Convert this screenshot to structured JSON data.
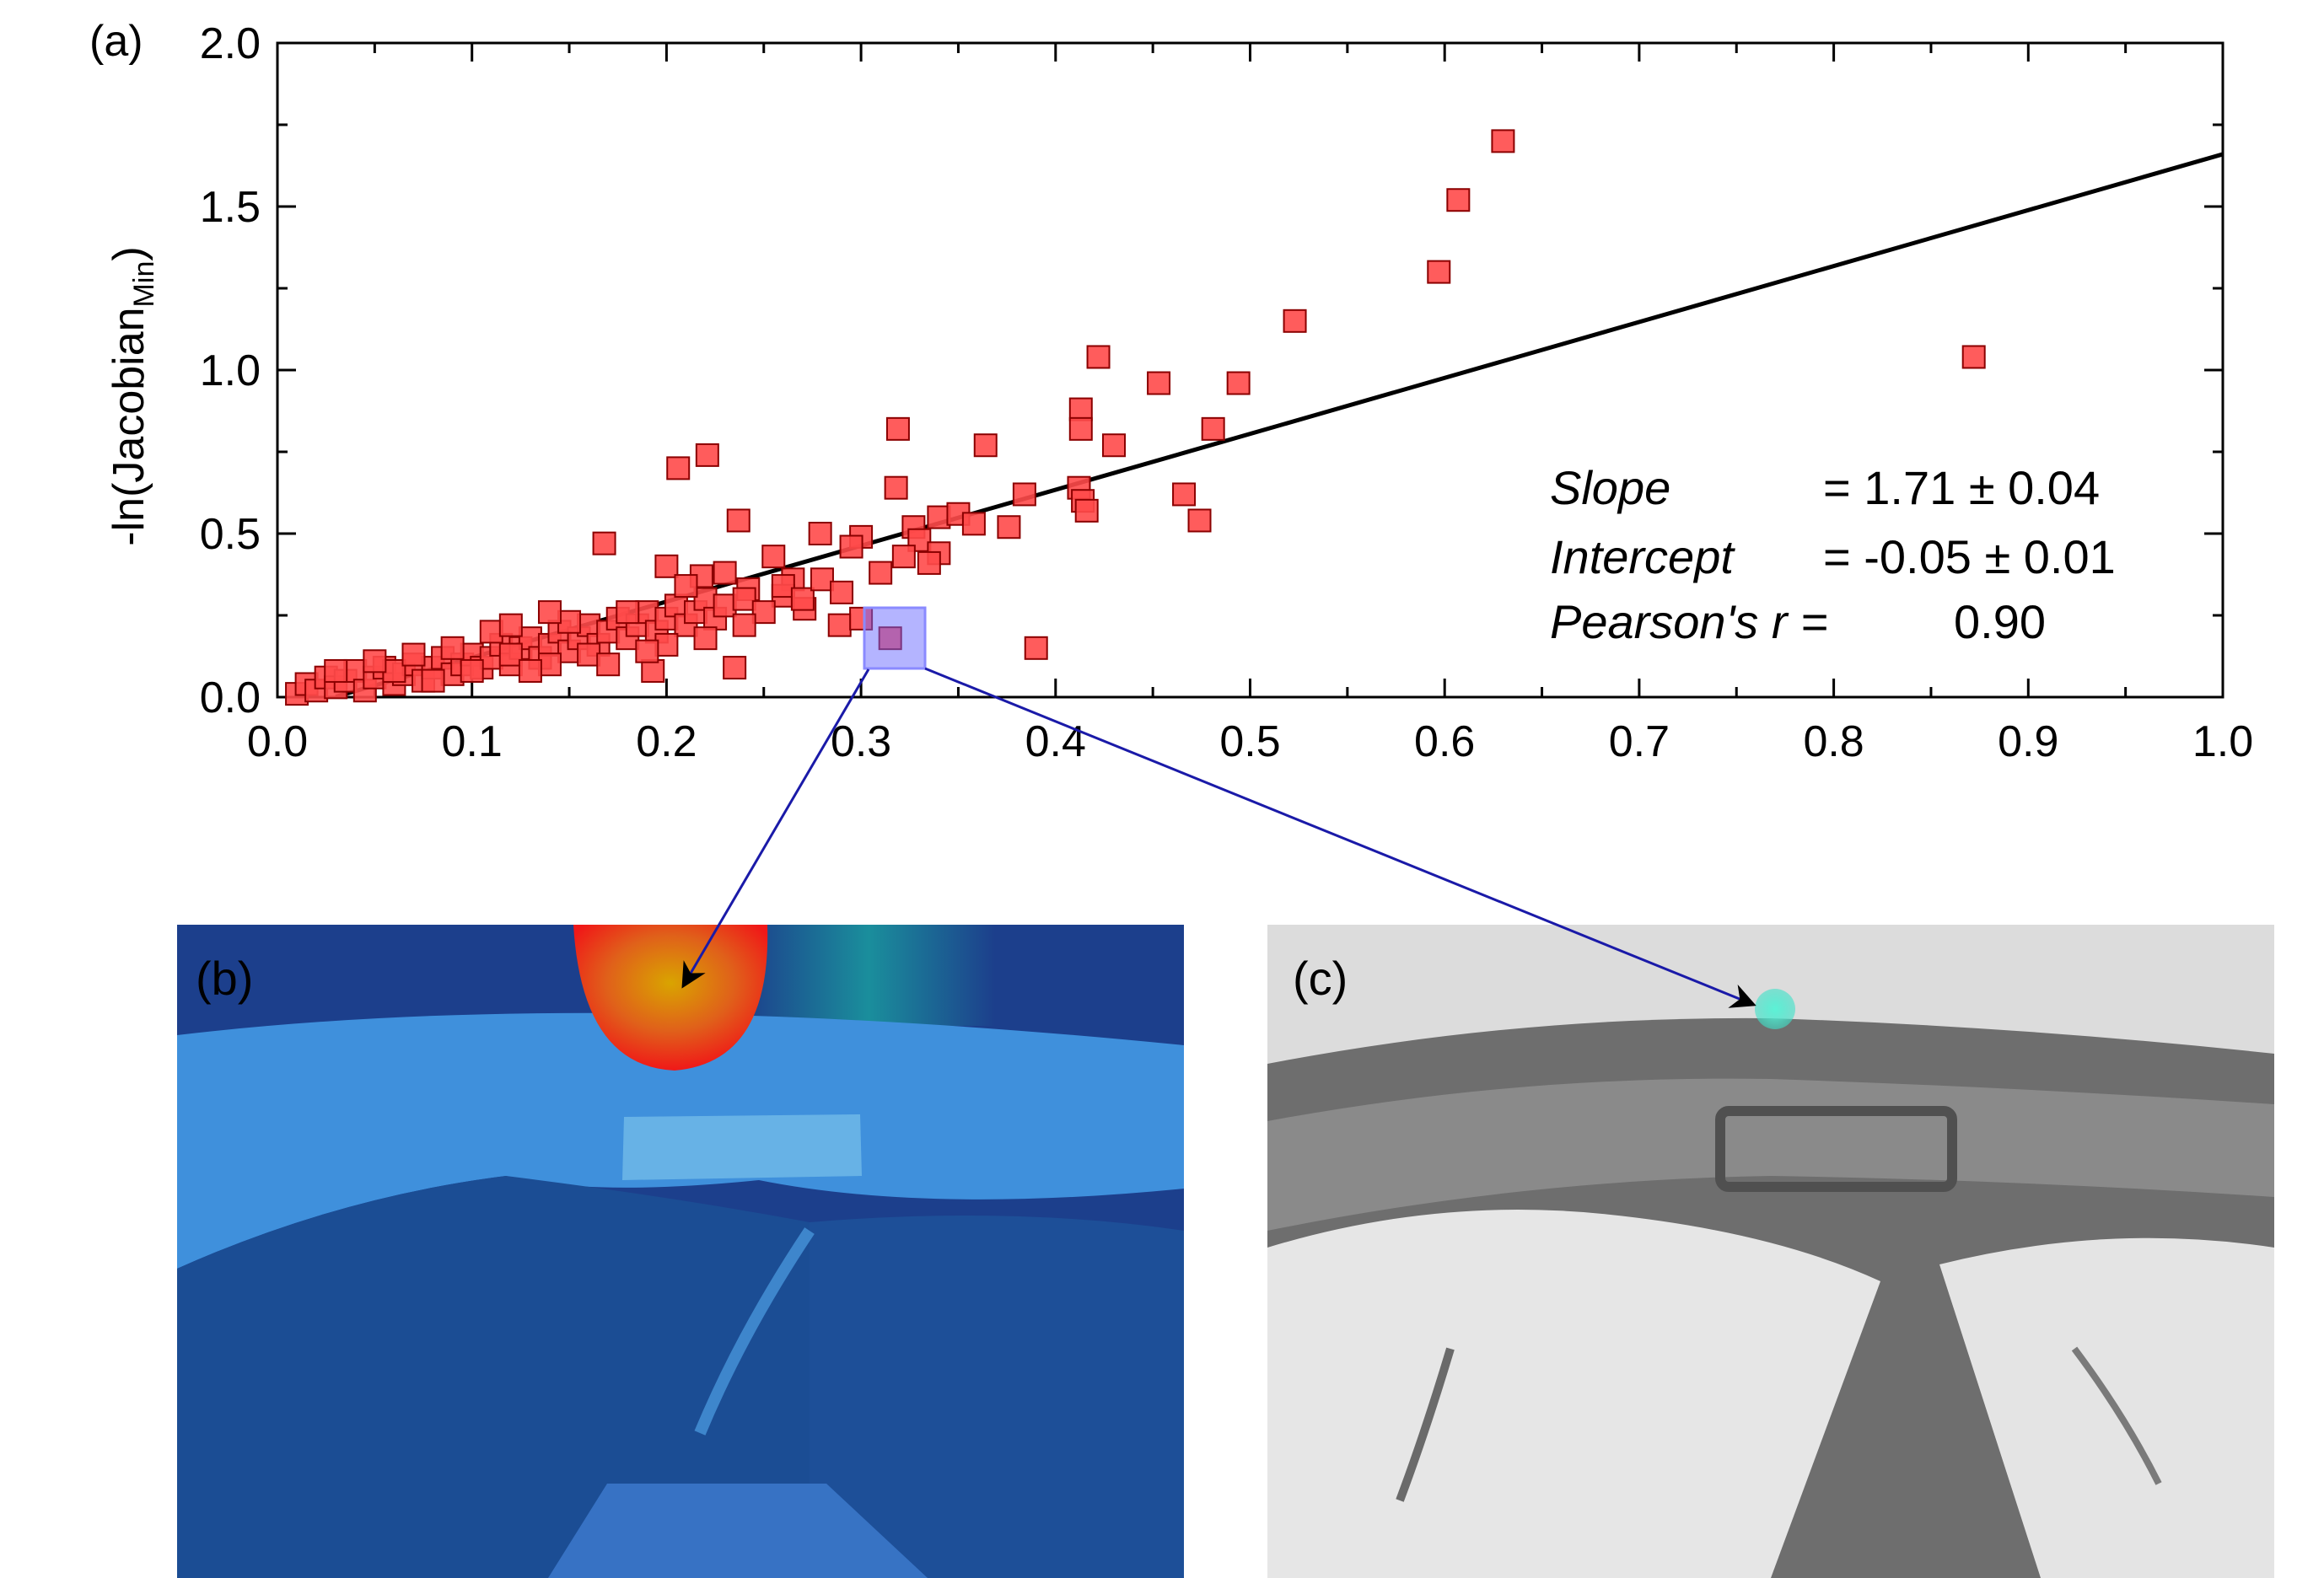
{
  "panels": {
    "a": "(a)",
    "b": "(b)",
    "c": "(c)"
  },
  "chart_data": {
    "type": "scatter",
    "title": "",
    "xlabel": "",
    "ylabel_main": "-ln(Jacobian",
    "ylabel_sub": "Min",
    "ylabel_close": ")",
    "xlim": [
      0.0,
      1.0
    ],
    "ylim": [
      0.0,
      2.0
    ],
    "x_ticks": [
      "0.0",
      "0.1",
      "0.2",
      "0.3",
      "0.4",
      "0.5",
      "0.6",
      "0.7",
      "0.8",
      "0.9",
      "1.0"
    ],
    "y_ticks": [
      "0.0",
      "0.5",
      "1.0",
      "1.5",
      "2.0"
    ],
    "grid": false,
    "marker_color": "#ff4a4a",
    "marker_edge": "#8b0000",
    "fit_line": {
      "slope": 1.71,
      "intercept": -0.05,
      "x_range": [
        0.03,
        1.0
      ]
    },
    "annotations": {
      "slope_label": "Slope",
      "slope_value": "=  1.71 ± 0.04",
      "intercept_label": "Intercept",
      "intercept_value": "= -0.05 ± 0.01",
      "pearson_label": "Pearson's r =",
      "pearson_value": "0.90"
    },
    "highlighted_point": {
      "x": 0.315,
      "y": 0.18
    },
    "points": [
      [
        0.63,
        1.7
      ],
      [
        0.607,
        1.52
      ],
      [
        0.597,
        1.3
      ],
      [
        0.523,
        1.15
      ],
      [
        0.872,
        1.04
      ],
      [
        0.422,
        1.04
      ],
      [
        0.453,
        0.96
      ],
      [
        0.494,
        0.96
      ],
      [
        0.413,
        0.88
      ],
      [
        0.413,
        0.82
      ],
      [
        0.481,
        0.82
      ],
      [
        0.319,
        0.82
      ],
      [
        0.364,
        0.77
      ],
      [
        0.43,
        0.77
      ],
      [
        0.221,
        0.74
      ],
      [
        0.206,
        0.7
      ],
      [
        0.318,
        0.64
      ],
      [
        0.412,
        0.64
      ],
      [
        0.384,
        0.62
      ],
      [
        0.466,
        0.62
      ],
      [
        0.414,
        0.6
      ],
      [
        0.416,
        0.57
      ],
      [
        0.474,
        0.54
      ],
      [
        0.237,
        0.54
      ],
      [
        0.34,
        0.55
      ],
      [
        0.35,
        0.56
      ],
      [
        0.358,
        0.53
      ],
      [
        0.376,
        0.52
      ],
      [
        0.327,
        0.52
      ],
      [
        0.279,
        0.5
      ],
      [
        0.3,
        0.49
      ],
      [
        0.33,
        0.48
      ],
      [
        0.168,
        0.47
      ],
      [
        0.295,
        0.46
      ],
      [
        0.34,
        0.44
      ],
      [
        0.255,
        0.43
      ],
      [
        0.322,
        0.43
      ],
      [
        0.335,
        0.41
      ],
      [
        0.2,
        0.4
      ],
      [
        0.218,
        0.37
      ],
      [
        0.23,
        0.38
      ],
      [
        0.31,
        0.38
      ],
      [
        0.265,
        0.36
      ],
      [
        0.242,
        0.33
      ],
      [
        0.26,
        0.31
      ],
      [
        0.271,
        0.27
      ],
      [
        0.289,
        0.22
      ],
      [
        0.3,
        0.24
      ],
      [
        0.235,
        0.09
      ],
      [
        0.39,
        0.15
      ],
      [
        0.193,
        0.08
      ],
      [
        0.315,
        0.18
      ],
      [
        0.01,
        0.01
      ],
      [
        0.015,
        0.04
      ],
      [
        0.02,
        0.02
      ],
      [
        0.025,
        0.06
      ],
      [
        0.03,
        0.03
      ],
      [
        0.035,
        0.05
      ],
      [
        0.04,
        0.08
      ],
      [
        0.045,
        0.02
      ],
      [
        0.05,
        0.06
      ],
      [
        0.055,
        0.09
      ],
      [
        0.06,
        0.04
      ],
      [
        0.065,
        0.07
      ],
      [
        0.07,
        0.1
      ],
      [
        0.075,
        0.05
      ],
      [
        0.08,
        0.09
      ],
      [
        0.085,
        0.12
      ],
      [
        0.09,
        0.07
      ],
      [
        0.095,
        0.1
      ],
      [
        0.1,
        0.13
      ],
      [
        0.105,
        0.09
      ],
      [
        0.11,
        0.12
      ],
      [
        0.115,
        0.16
      ],
      [
        0.12,
        0.1
      ],
      [
        0.125,
        0.15
      ],
      [
        0.13,
        0.18
      ],
      [
        0.135,
        0.12
      ],
      [
        0.14,
        0.16
      ],
      [
        0.145,
        0.2
      ],
      [
        0.15,
        0.14
      ],
      [
        0.155,
        0.18
      ],
      [
        0.16,
        0.22
      ],
      [
        0.165,
        0.16
      ],
      [
        0.17,
        0.2
      ],
      [
        0.175,
        0.24
      ],
      [
        0.18,
        0.18
      ],
      [
        0.185,
        0.22
      ],
      [
        0.19,
        0.26
      ],
      [
        0.195,
        0.2
      ],
      [
        0.2,
        0.24
      ],
      [
        0.205,
        0.28
      ],
      [
        0.21,
        0.22
      ],
      [
        0.215,
        0.26
      ],
      [
        0.22,
        0.3
      ],
      [
        0.225,
        0.24
      ],
      [
        0.23,
        0.28
      ],
      [
        0.24,
        0.3
      ],
      [
        0.25,
        0.26
      ],
      [
        0.26,
        0.34
      ],
      [
        0.27,
        0.3
      ],
      [
        0.28,
        0.36
      ],
      [
        0.29,
        0.32
      ],
      [
        0.06,
        0.08
      ],
      [
        0.08,
        0.05
      ],
      [
        0.1,
        0.08
      ],
      [
        0.12,
        0.13
      ],
      [
        0.14,
        0.1
      ],
      [
        0.16,
        0.13
      ],
      [
        0.18,
        0.26
      ],
      [
        0.2,
        0.16
      ],
      [
        0.22,
        0.18
      ],
      [
        0.24,
        0.22
      ],
      [
        0.11,
        0.2
      ],
      [
        0.13,
        0.08
      ],
      [
        0.15,
        0.23
      ],
      [
        0.17,
        0.1
      ],
      [
        0.19,
        0.14
      ],
      [
        0.21,
        0.34
      ],
      [
        0.09,
        0.15
      ],
      [
        0.07,
        0.13
      ],
      [
        0.05,
        0.11
      ],
      [
        0.03,
        0.08
      ],
      [
        0.12,
        0.22
      ],
      [
        0.14,
        0.26
      ]
    ]
  }
}
